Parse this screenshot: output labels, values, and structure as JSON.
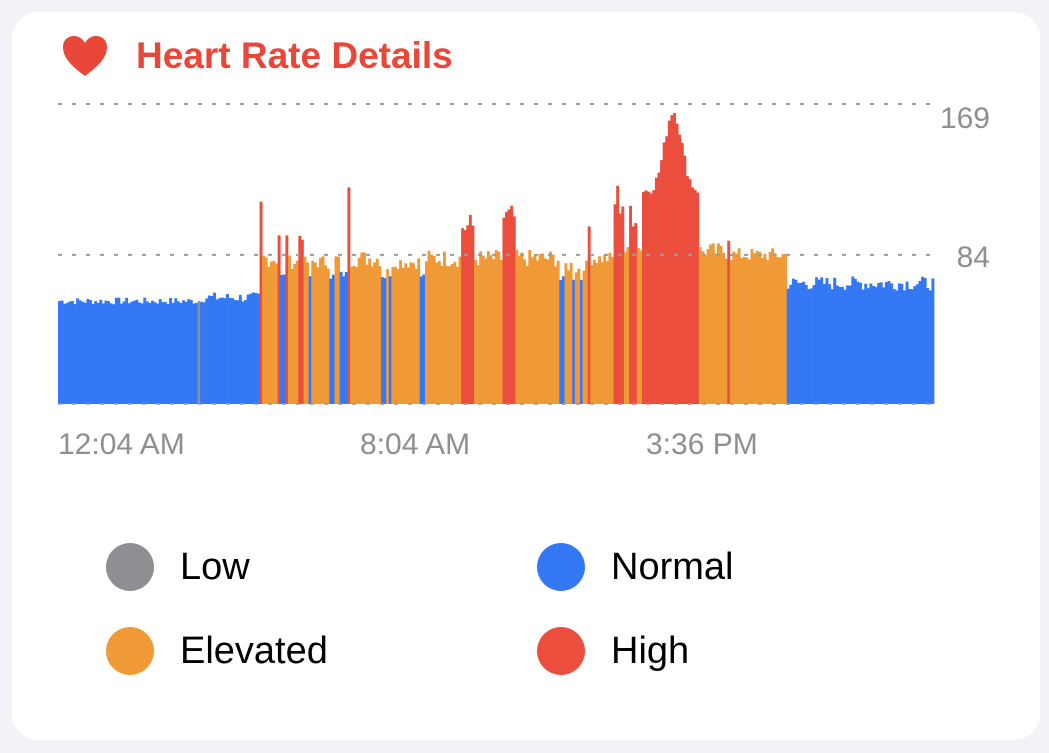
{
  "colors": {
    "low": "#8e8e93",
    "normal": "#3478f6",
    "elevated": "#f09a37",
    "high": "#eb4e3d",
    "title": "#e8473a",
    "axis_text": "#8e8e93"
  },
  "header": {
    "icon": "heart-icon",
    "title": "Heart Rate Details"
  },
  "legend": [
    {
      "label": "Low",
      "category": "low"
    },
    {
      "label": "Normal",
      "category": "normal"
    },
    {
      "label": "Elevated",
      "category": "elevated"
    },
    {
      "label": "High",
      "category": "high"
    }
  ],
  "chart_data": {
    "type": "bar",
    "title": "",
    "xlabel": "",
    "ylabel": "",
    "x_ticks": [
      "12:04 AM",
      "8:04 AM",
      "3:36 PM"
    ],
    "y_ticks": [
      169,
      84
    ],
    "ylim": [
      0,
      169
    ],
    "grid": "dashed horizontal at 169, 84 and 0",
    "legend_placement": "bottom",
    "categories": [
      "low",
      "normal",
      "elevated",
      "high"
    ],
    "segments": [
      {
        "category": "normal",
        "count": 54,
        "base": 58,
        "vary": 2
      },
      {
        "category": "low",
        "count": 1,
        "base": 58,
        "vary": 0
      },
      {
        "category": "normal",
        "count": 23,
        "base": 60,
        "vary": 3
      },
      {
        "category": "high",
        "count": 1,
        "base": 114,
        "vary": 0
      },
      {
        "category": "elevated",
        "count": 6,
        "base": 82,
        "vary": 5
      },
      {
        "category": "high",
        "count": 1,
        "base": 95,
        "vary": 0
      },
      {
        "category": "normal",
        "count": 2,
        "base": 72,
        "vary": 2
      },
      {
        "category": "high",
        "count": 1,
        "base": 95,
        "vary": 0
      },
      {
        "category": "elevated",
        "count": 4,
        "base": 80,
        "vary": 4
      },
      {
        "category": "high",
        "count": 2,
        "base": 95,
        "vary": 3
      },
      {
        "category": "elevated",
        "count": 2,
        "base": 80,
        "vary": 3
      },
      {
        "category": "normal",
        "count": 1,
        "base": 72,
        "vary": 0
      },
      {
        "category": "elevated",
        "count": 7,
        "base": 80,
        "vary": 4
      },
      {
        "category": "normal",
        "count": 2,
        "base": 72,
        "vary": 2
      },
      {
        "category": "elevated",
        "count": 2,
        "base": 82,
        "vary": 3
      },
      {
        "category": "normal",
        "count": 3,
        "base": 73,
        "vary": 2
      },
      {
        "category": "high",
        "count": 1,
        "base": 122,
        "vary": 0
      },
      {
        "category": "elevated",
        "count": 12,
        "base": 82,
        "vary": 5
      },
      {
        "category": "normal",
        "count": 2,
        "base": 72,
        "vary": 2
      },
      {
        "category": "elevated",
        "count": 1,
        "base": 76,
        "vary": 0
      },
      {
        "category": "normal",
        "count": 1,
        "base": 72,
        "vary": 0
      },
      {
        "category": "elevated",
        "count": 11,
        "base": 80,
        "vary": 4
      },
      {
        "category": "normal",
        "count": 2,
        "base": 72,
        "vary": 2
      },
      {
        "category": "elevated",
        "count": 14,
        "base": 82,
        "vary": 5
      },
      {
        "category": "high",
        "count": 5,
        "base": 100,
        "vary": 8
      },
      {
        "category": "elevated",
        "count": 11,
        "base": 82,
        "vary": 5
      },
      {
        "category": "high",
        "count": 5,
        "base": 105,
        "vary": 8
      },
      {
        "category": "elevated",
        "count": 17,
        "base": 82,
        "vary": 5
      },
      {
        "category": "normal",
        "count": 2,
        "base": 70,
        "vary": 2
      },
      {
        "category": "elevated",
        "count": 3,
        "base": 78,
        "vary": 4
      },
      {
        "category": "normal",
        "count": 1,
        "base": 70,
        "vary": 0
      },
      {
        "category": "elevated",
        "count": 2,
        "base": 76,
        "vary": 3
      },
      {
        "category": "normal",
        "count": 1,
        "base": 70,
        "vary": 0
      },
      {
        "category": "elevated",
        "count": 2,
        "base": 78,
        "vary": 3
      },
      {
        "category": "high",
        "count": 1,
        "base": 100,
        "vary": 0
      },
      {
        "category": "elevated",
        "count": 9,
        "base": 82,
        "vary": 4
      },
      {
        "category": "high",
        "count": 4,
        "base": 115,
        "vary": 12
      },
      {
        "category": "elevated",
        "count": 2,
        "base": 86,
        "vary": 3
      },
      {
        "category": "high",
        "count": 3,
        "base": 110,
        "vary": 12
      },
      {
        "category": "elevated",
        "count": 2,
        "base": 88,
        "vary": 3
      },
      {
        "category": "high",
        "count": 22,
        "base": 120,
        "vary": 45
      },
      {
        "category": "elevated",
        "count": 11,
        "base": 86,
        "vary": 5
      },
      {
        "category": "high",
        "count": 1,
        "base": 92,
        "vary": 0
      },
      {
        "category": "elevated",
        "count": 22,
        "base": 84,
        "vary": 4
      },
      {
        "category": "normal",
        "count": 57,
        "base": 68,
        "vary": 4
      }
    ]
  }
}
